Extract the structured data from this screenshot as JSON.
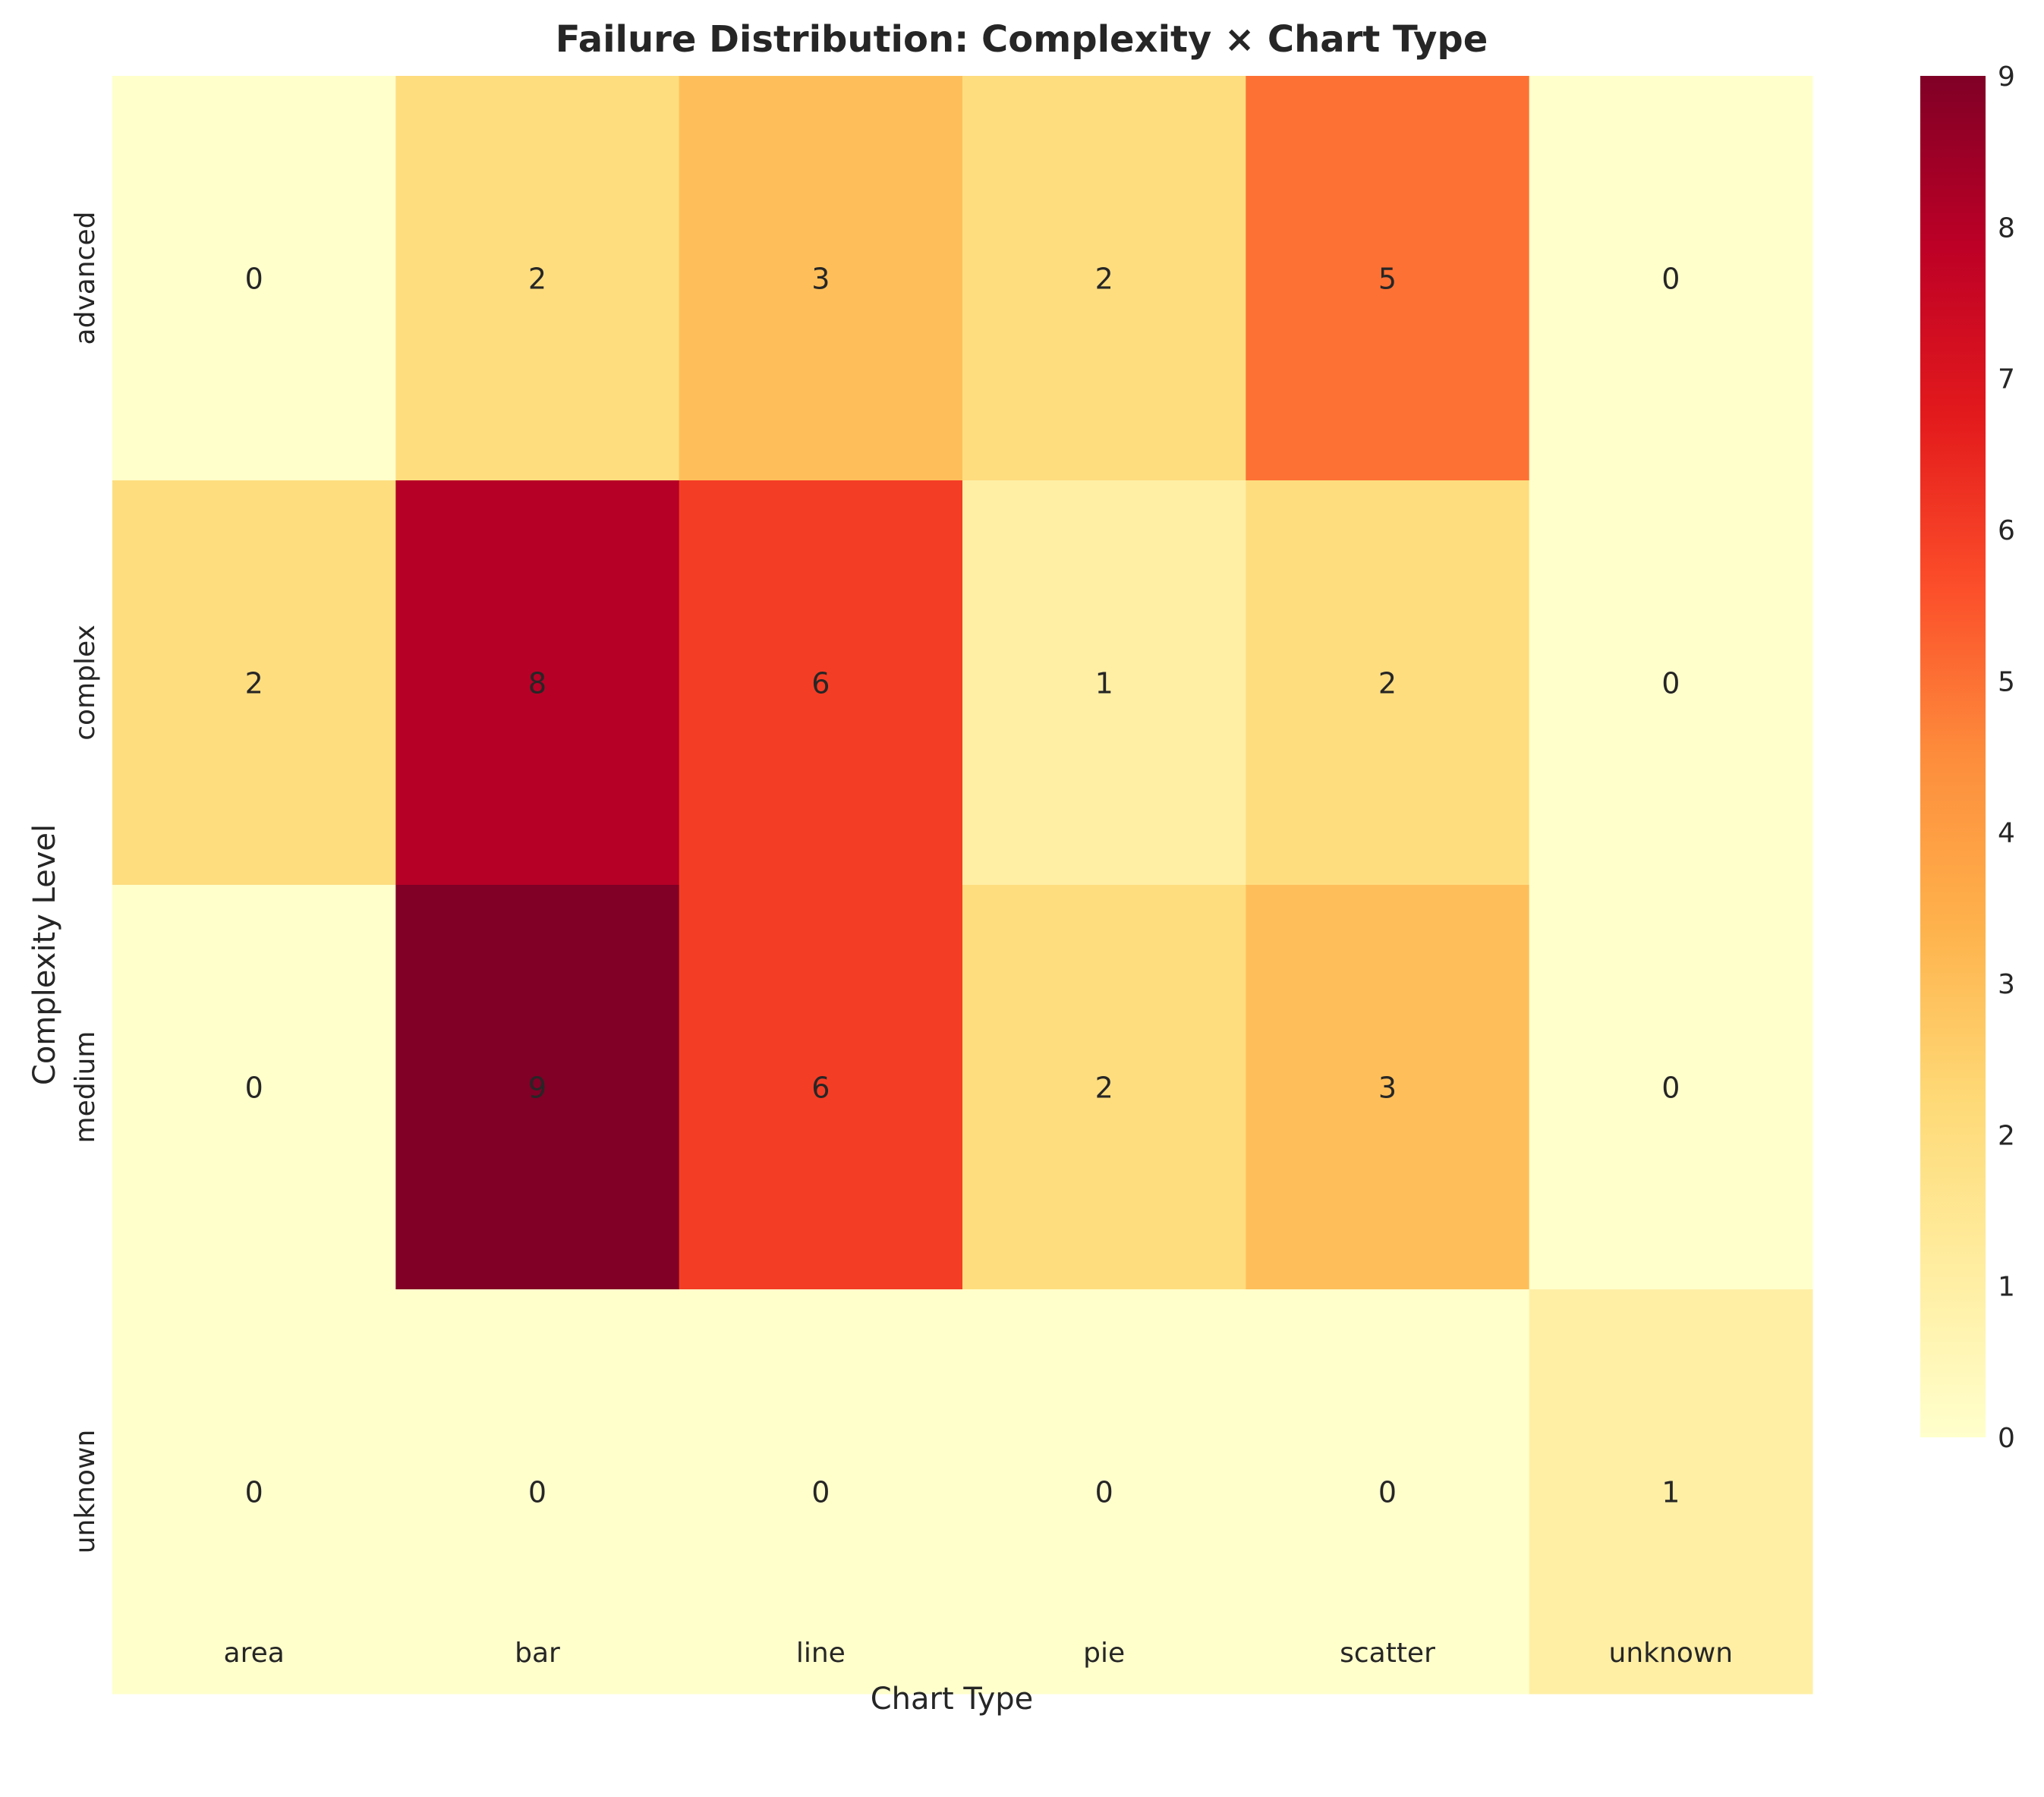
{
  "chart_data": {
    "type": "heatmap",
    "title": "Failure Distribution: Complexity × Chart Type",
    "xlabel": "Chart Type",
    "ylabel": "Complexity Level",
    "x_categories": [
      "area",
      "bar",
      "line",
      "pie",
      "scatter",
      "unknown"
    ],
    "y_categories": [
      "advanced",
      "complex",
      "medium",
      "unknown"
    ],
    "values": [
      [
        0,
        2,
        3,
        2,
        5,
        0
      ],
      [
        2,
        8,
        6,
        1,
        2,
        0
      ],
      [
        0,
        9,
        6,
        2,
        3,
        0
      ],
      [
        0,
        0,
        0,
        0,
        0,
        1
      ]
    ],
    "colorbar": {
      "range": [
        0,
        9
      ],
      "ticks": [
        "0",
        "1",
        "2",
        "3",
        "4",
        "5",
        "6",
        "7",
        "8",
        "9"
      ],
      "colormap": "YlOrRd",
      "stops": [
        "#ffffcc",
        "#ffeda0",
        "#fed976",
        "#feb24c",
        "#fd8d3c",
        "#fc4e2a",
        "#e31a1c",
        "#bd0026",
        "#800026"
      ]
    },
    "grid": false
  }
}
